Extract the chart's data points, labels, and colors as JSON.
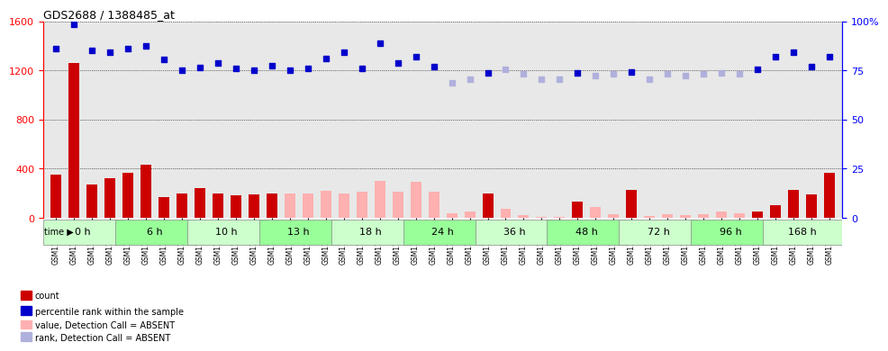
{
  "title": "GDS2688 / 1388485_at",
  "samples": [
    "GSM112209",
    "GSM112210",
    "GSM114869",
    "GSM115079",
    "GSM114896",
    "GSM114897",
    "GSM114898",
    "GSM114899",
    "GSM114870",
    "GSM114871",
    "GSM114872",
    "GSM114873",
    "GSM114874",
    "GSM114875",
    "GSM114876",
    "GSM114877",
    "GSM114882",
    "GSM114883",
    "GSM114884",
    "GSM114885",
    "GSM114886",
    "GSM114893",
    "GSM115077",
    "GSM115078",
    "GSM114887",
    "GSM114888",
    "GSM114889",
    "GSM114890",
    "GSM114891",
    "GSM114892",
    "GSM114894",
    "GSM114895",
    "GSM114900",
    "GSM114901",
    "GSM114902",
    "GSM114903",
    "GSM114904",
    "GSM114905",
    "GSM114906",
    "GSM115076",
    "GSM114878",
    "GSM114879",
    "GSM114880",
    "GSM114881"
  ],
  "time_groups": [
    {
      "label": "0 h",
      "start": 0,
      "end": 4
    },
    {
      "label": "6 h",
      "start": 4,
      "end": 8
    },
    {
      "label": "10 h",
      "start": 8,
      "end": 12
    },
    {
      "label": "13 h",
      "start": 12,
      "end": 16
    },
    {
      "label": "18 h",
      "start": 16,
      "end": 20
    },
    {
      "label": "24 h",
      "start": 20,
      "end": 24
    },
    {
      "label": "36 h",
      "start": 24,
      "end": 28
    },
    {
      "label": "48 h",
      "start": 28,
      "end": 32
    },
    {
      "label": "72 h",
      "start": 32,
      "end": 36
    },
    {
      "label": "96 h",
      "start": 36,
      "end": 40
    },
    {
      "label": "168 h",
      "start": 40,
      "end": 44
    }
  ],
  "count_values": [
    350,
    1260,
    270,
    320,
    370,
    430,
    170,
    200,
    240,
    200,
    180,
    190,
    195,
    200,
    195,
    220,
    200,
    210,
    300,
    215,
    290,
    210,
    40,
    55,
    200,
    70,
    20,
    10,
    5,
    130,
    90,
    30,
    230,
    15,
    30,
    20,
    30,
    50,
    40,
    50,
    100,
    230,
    190,
    370
  ],
  "count_absent": [
    false,
    false,
    false,
    false,
    false,
    false,
    false,
    false,
    false,
    false,
    false,
    false,
    false,
    true,
    true,
    true,
    true,
    true,
    true,
    true,
    true,
    true,
    true,
    true,
    false,
    true,
    true,
    true,
    true,
    false,
    true,
    true,
    false,
    true,
    true,
    true,
    true,
    true,
    true,
    false,
    false,
    false,
    false,
    false
  ],
  "rank_values": [
    1380,
    1575,
    1360,
    1350,
    1380,
    1400,
    1290,
    1200,
    1225,
    1260,
    1220,
    1200,
    1240,
    1200,
    1220,
    1300,
    1350,
    1220,
    1420,
    1260,
    1310,
    1230,
    1100,
    1130,
    1180,
    1210,
    1170,
    1130,
    1130,
    1180,
    1160,
    1170,
    1190,
    1130,
    1170,
    1155,
    1175,
    1180,
    1175,
    1210,
    1310,
    1350,
    1230,
    1310
  ],
  "rank_absent": [
    false,
    false,
    false,
    false,
    false,
    false,
    false,
    false,
    false,
    false,
    false,
    false,
    false,
    false,
    false,
    false,
    false,
    false,
    false,
    false,
    false,
    false,
    true,
    true,
    false,
    true,
    true,
    true,
    true,
    false,
    true,
    true,
    false,
    true,
    true,
    true,
    true,
    true,
    true,
    false,
    false,
    false,
    false,
    false
  ],
  "ylim_left": [
    0,
    1600
  ],
  "ylim_right": [
    0,
    100
  ],
  "yticks_left": [
    0,
    400,
    800,
    1200,
    1600
  ],
  "yticks_right": [
    0,
    25,
    50,
    75,
    100
  ],
  "bar_color_present": "#cc0000",
  "bar_color_absent": "#ffb0b0",
  "dot_color_present": "#0000cc",
  "dot_color_absent": "#b0b0dd",
  "grid_color": "#000000",
  "bg_color": "#e8e8e8",
  "time_row_colors": [
    "#ccffcc",
    "#99ff99"
  ],
  "legend_items": [
    {
      "color": "#cc0000",
      "label": "count"
    },
    {
      "color": "#0000cc",
      "label": "percentile rank within the sample"
    },
    {
      "color": "#ffb0b0",
      "label": "value, Detection Call = ABSENT"
    },
    {
      "color": "#b0b0dd",
      "label": "rank, Detection Call = ABSENT"
    }
  ]
}
